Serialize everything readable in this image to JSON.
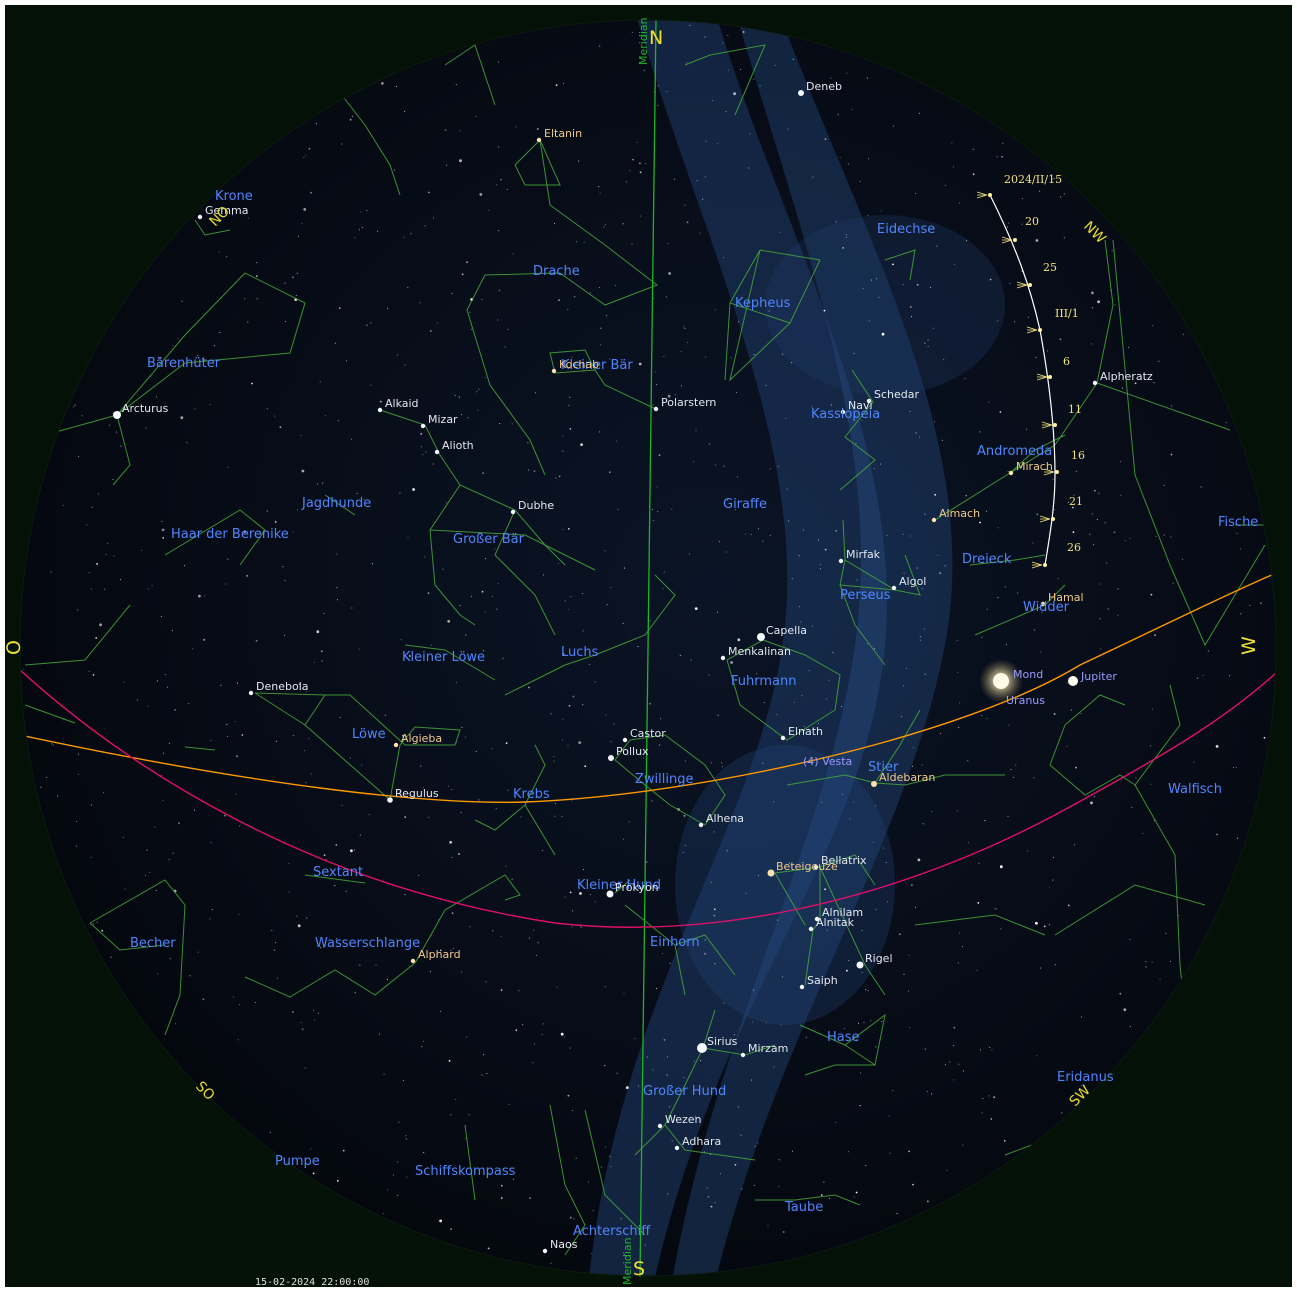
{
  "colors": {
    "sky": "#08101e",
    "milky_way": "#2a4b7e",
    "constellation_lines": "#47a83a",
    "constellation_labels": "#4f86ff",
    "meridian": "#1db428",
    "ecliptic": "#ff9900",
    "celestial_equator": "#e0106a",
    "cardinal_labels": "#f0e030",
    "moon_path": "#ffffff"
  },
  "cardinals": {
    "north": "N",
    "south": "S",
    "east": "O",
    "west": "W",
    "northeast": "NO",
    "southeast": "SO",
    "southwest": "SW",
    "northwest": "NW"
  },
  "meridian_label": "Meridian",
  "timestamp": "15-02-2024 22:00:00",
  "constellations": [
    "Drache",
    "Kleiner Bär",
    "Kepheus",
    "Eidechse",
    "Kassiopeia",
    "Andromeda",
    "Bärenhüter",
    "Krone",
    "Jagdhunde",
    "Großer Bär",
    "Haar der Berenike",
    "Giraffe",
    "Dreieck",
    "Perseus",
    "Widder",
    "Fische",
    "Luchs",
    "Kleiner Löwe",
    "Fuhrmann",
    "Löwe",
    "Krebs",
    "Zwillinge",
    "Stier",
    "Walfisch",
    "Sextant",
    "Kleiner Hund",
    "Einhorn",
    "Becher",
    "Wasserschlange",
    "Hase",
    "Großer Hund",
    "Eridanus",
    "Schiffskompass",
    "Achterschiff",
    "Taube",
    "Pumpe"
  ],
  "stars": [
    "Eltanin",
    "Deneb",
    "Kochab",
    "Polarstern",
    "Schedar",
    "Navi",
    "Alpheratz",
    "Mirach",
    "Almach",
    "Mirfak",
    "Algol",
    "Hamal",
    "Arcturus",
    "Alkaid",
    "Mizar",
    "Alioth",
    "Dubhe",
    "Gemma",
    "Capella",
    "Menkalinan",
    "Elnath",
    "Aldebaran",
    "Denebola",
    "Algieba",
    "Regulus",
    "Castor",
    "Pollux",
    "Alhena",
    "Beteigeuze",
    "Bellatrix",
    "Alnilam",
    "Alnitak",
    "Rigel",
    "Saiph",
    "Prokyon",
    "Alphard",
    "Sirius",
    "Mirzam",
    "Wezen",
    "Adhara",
    "Naos"
  ],
  "planets": [
    "Mond",
    "Jupiter",
    "Uranus",
    "(4) Vesta"
  ],
  "moon_path": {
    "start_label": "2024/II/15",
    "labels": [
      "20",
      "25",
      "III/1",
      "6",
      "11",
      "16",
      "21",
      "26"
    ]
  }
}
